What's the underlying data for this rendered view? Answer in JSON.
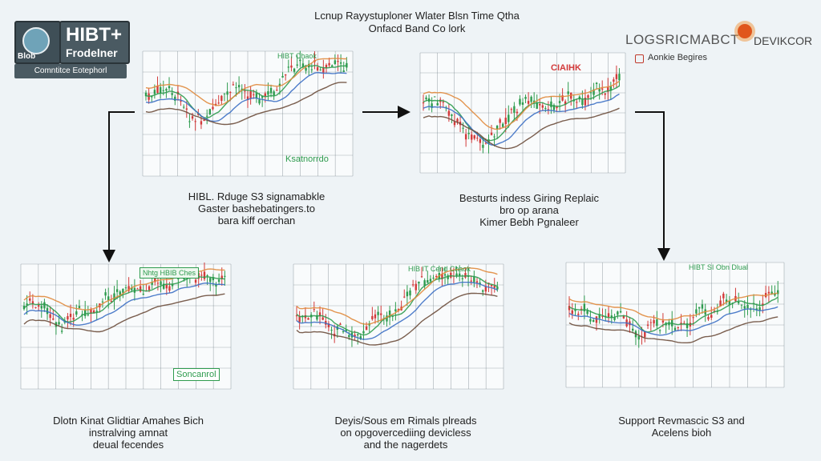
{
  "title": {
    "line1": "Lcnup Rayystuploner Wlater Blsn Time Qtha",
    "line2": "Onfacd Band Co lork"
  },
  "logo": {
    "box_text": "Blob",
    "main": "HIBT+",
    "sub": "Frodelner",
    "tag": "Comntitce Eotephorl"
  },
  "brand": {
    "name": "LOGSRICMABCT",
    "name2": "DEVIKCOR",
    "sub": "Aonkie Begires",
    "accent": "#e0561c"
  },
  "panels": [
    {
      "label": "HIBT Chaok",
      "annot": "Ksatnorrdo",
      "caption": [
        "HIBL. Rduge S3 signamabkle",
        "Gaster bashebatingers.to",
        "bara kiff oerchan"
      ]
    },
    {
      "label": "CIAIHK",
      "annot": "",
      "caption": [
        "Besturts indess Giring Replaic",
        "bro op arana",
        "Kimer Bebh Pgnaleer"
      ]
    },
    {
      "label": "Nhtg HBIB Ches",
      "annot": "Soncanrol",
      "caption": [
        "Dlotn Kinat Glidtiar Amahes Bich",
        "instralving amnat",
        "deual fecendes"
      ]
    },
    {
      "label": "HIB IT Cend Chaok",
      "annot": "",
      "caption": [
        "Deyis/Sous em Rimals plreads",
        "on opgovercediing devicless",
        "and the nagerdets"
      ]
    },
    {
      "label": "HIBT SI Obn Dlual",
      "annot": "",
      "caption": [
        "Support Revmascic S3 and",
        "Acelens bioh"
      ]
    }
  ],
  "colors": {
    "up": "#2e9b4e",
    "down": "#d23a3a",
    "ma1": "#2e9b4e",
    "ma2": "#e08a3c",
    "ma3": "#3b6fc4",
    "ma4": "#6b4c3b",
    "grid": "#5f6f78",
    "label_green": "#2e9b4e",
    "label_red": "#d23a3a"
  }
}
